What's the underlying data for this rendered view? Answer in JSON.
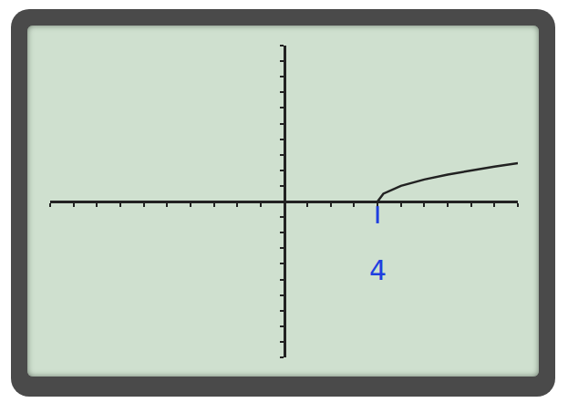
{
  "chart_data": {
    "type": "line",
    "x": [
      4,
      4.25,
      5,
      6,
      7,
      8,
      9,
      10
    ],
    "values": [
      0,
      0.5,
      1,
      1.41,
      1.73,
      2,
      2.24,
      2.45
    ],
    "color": "#222222",
    "xlim": [
      -10,
      10
    ],
    "ylim": [
      -10,
      10
    ],
    "xticks": [
      -10,
      -9,
      -8,
      -7,
      -6,
      -5,
      -4,
      -3,
      -2,
      -1,
      0,
      1,
      2,
      3,
      4,
      5,
      6,
      7,
      8,
      9,
      10
    ],
    "yticks": [
      -10,
      -9,
      -8,
      -7,
      -6,
      -5,
      -4,
      -3,
      -2,
      -1,
      0,
      1,
      2,
      3,
      4,
      5,
      6,
      7,
      8,
      9,
      10
    ],
    "grid": false,
    "tick_labels": false,
    "annotations": [
      {
        "text": "4",
        "x": 4,
        "y": -4.4,
        "color": "#1f3fe0"
      }
    ]
  }
}
